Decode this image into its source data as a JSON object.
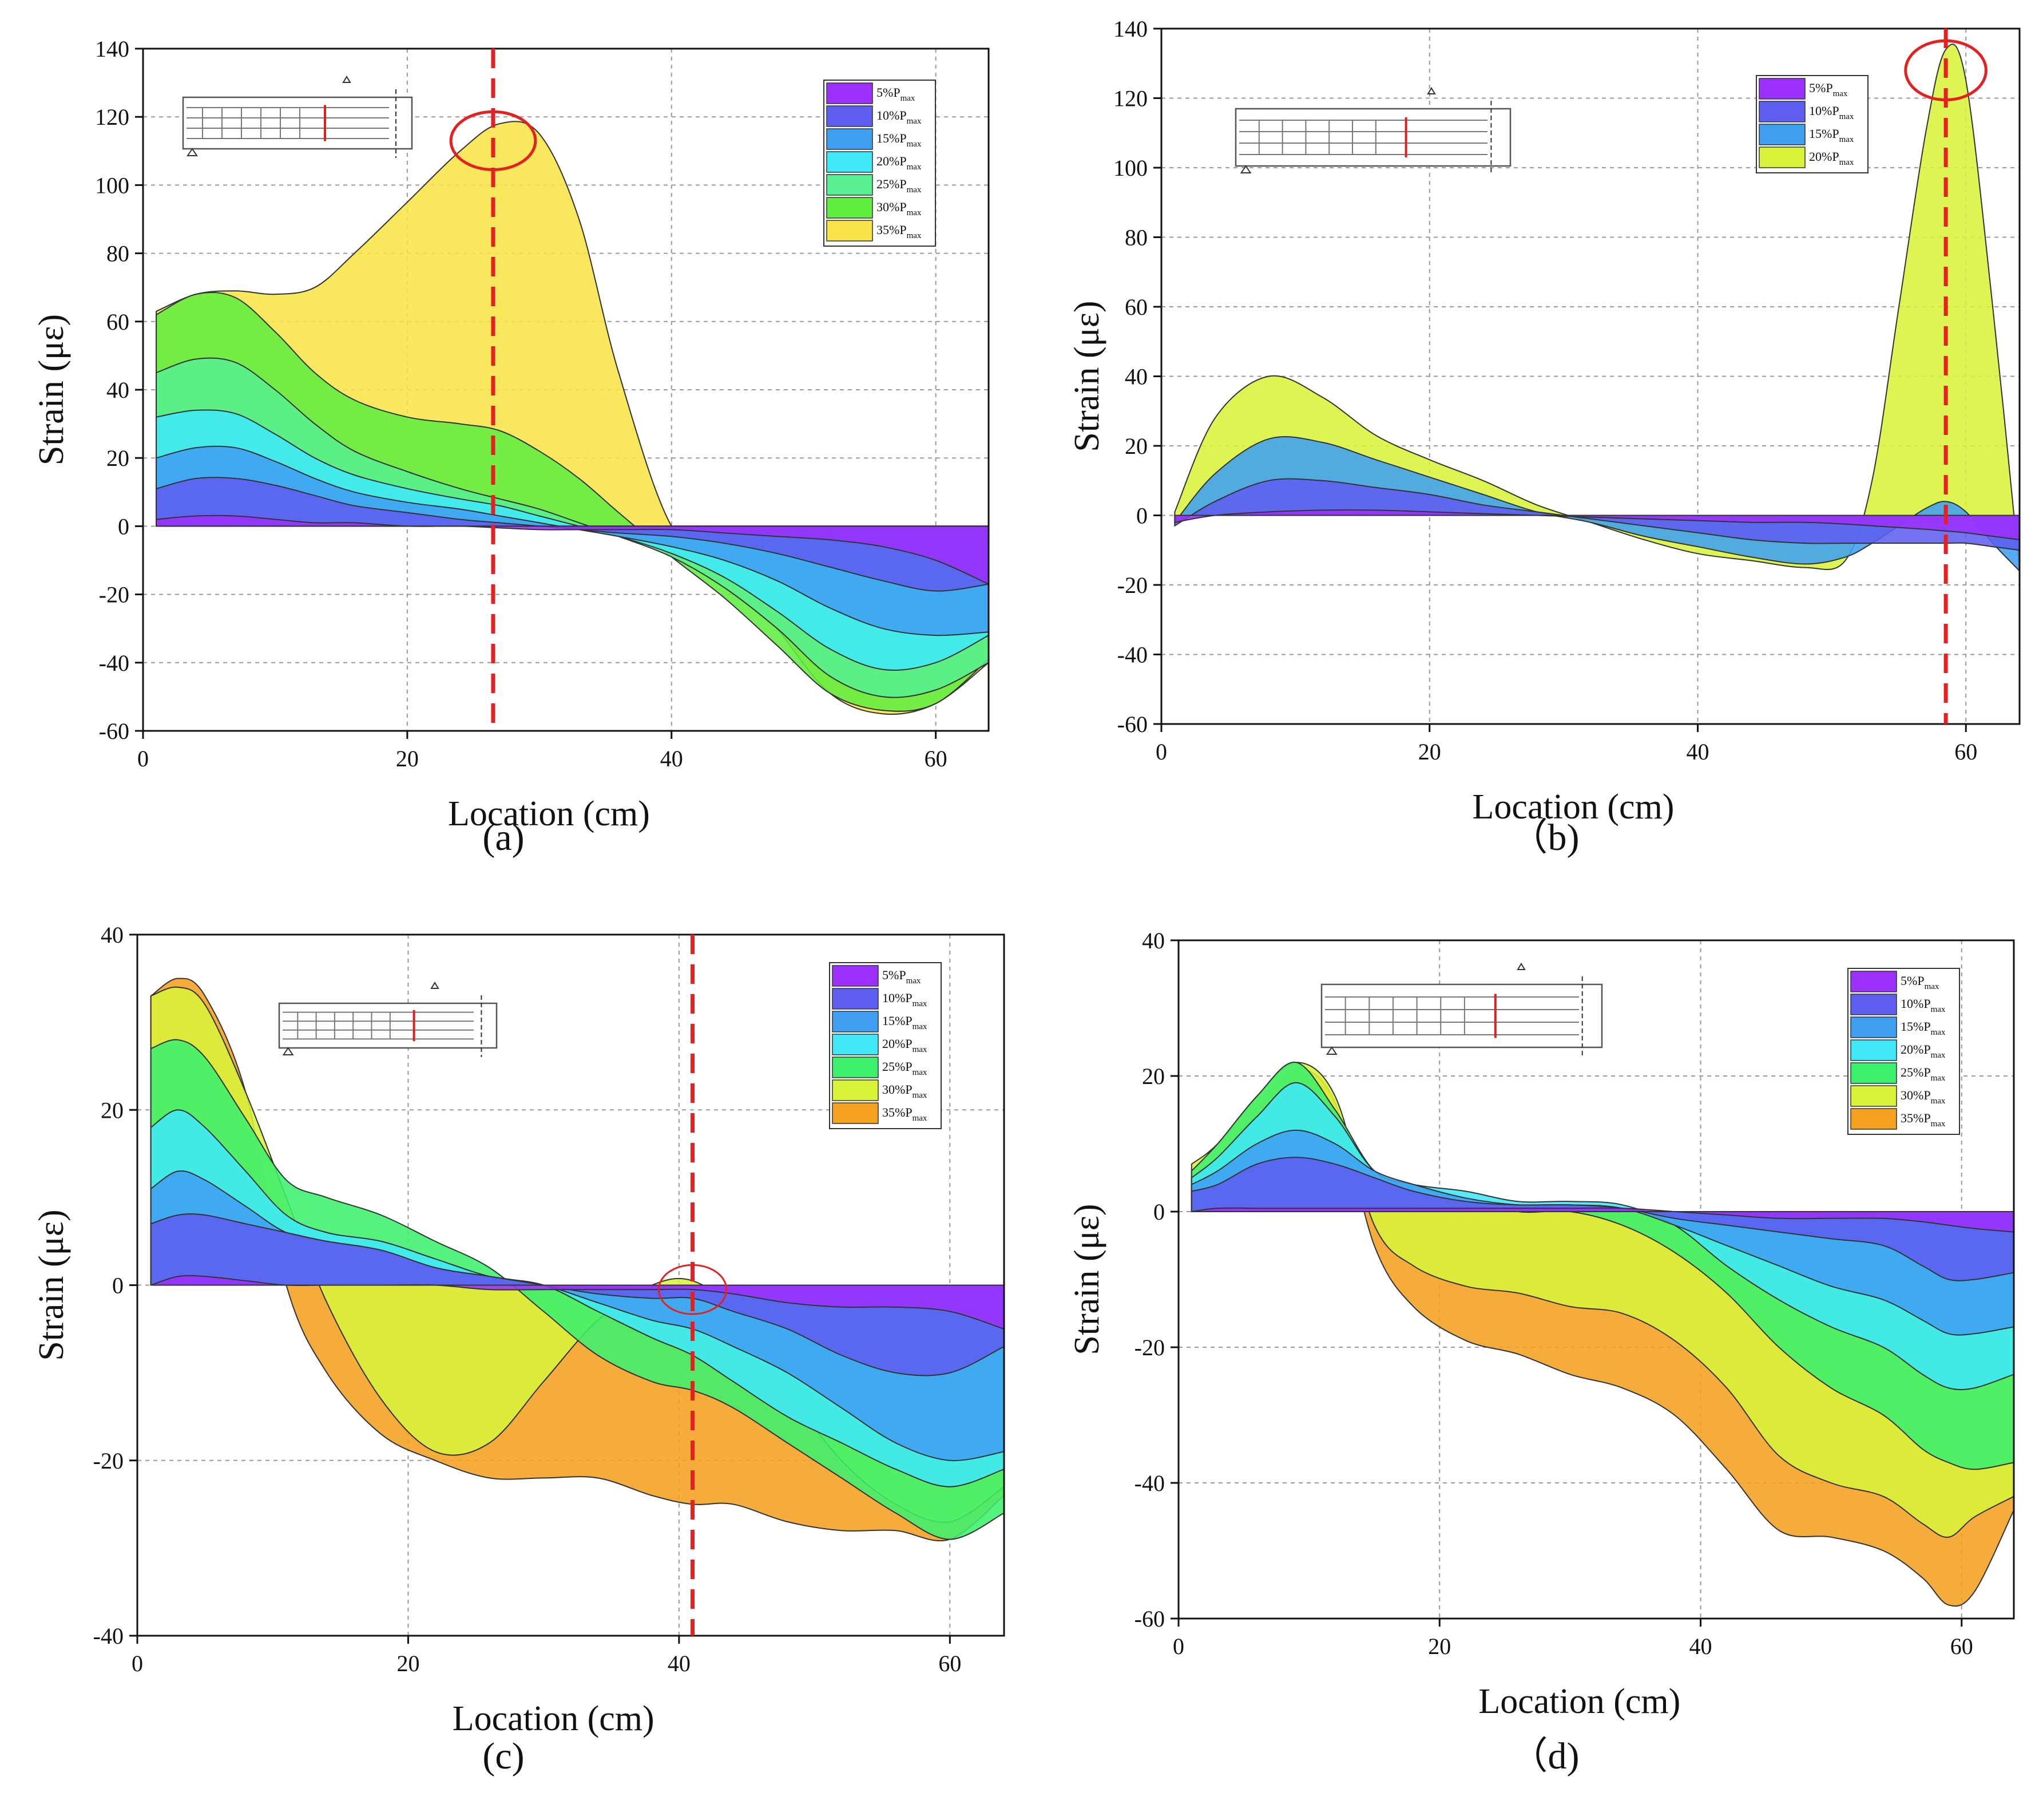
{
  "figure": {
    "captions": [
      "(a)",
      "（b)",
      "(c)",
      "（d)"
    ]
  },
  "colors": {
    "p5": "#9b30ff",
    "p10": "#5e5ef0",
    "p15": "#3fa0f2",
    "p20": "#40e8f8",
    "p25": "#3cf06c",
    "p30": "#d8f23a",
    "p35": "#f4a020",
    "p35_a": "#f8e448",
    "p25_a": "#58f090",
    "p30_a": "#60ee40",
    "guide": "#e62020"
  },
  "chart_data": [
    {
      "id": "a",
      "type": "area",
      "caption": "(a)",
      "xlabel": "Location (cm)",
      "ylabel": "Strain (με)",
      "xlim": [
        0,
        64
      ],
      "ylim": [
        -60,
        140
      ],
      "xticks": [
        0,
        20,
        40,
        60
      ],
      "yticks": [
        -60,
        -40,
        -20,
        0,
        20,
        40,
        60,
        80,
        100,
        120,
        140
      ],
      "x": [
        1,
        4,
        7,
        10,
        13,
        16,
        20,
        24,
        27,
        30,
        33,
        36,
        40,
        44,
        48,
        52,
        56,
        60,
        64
      ],
      "series": [
        {
          "name": "5%P",
          "sub": "max",
          "color_key": "p5",
          "values": [
            2,
            3,
            3,
            2,
            1,
            1,
            0,
            0,
            -0.5,
            -1,
            -1,
            -1,
            -1,
            -2,
            -3,
            -4,
            -6,
            -10,
            -17
          ]
        },
        {
          "name": "10%P",
          "sub": "max",
          "color_key": "p10",
          "values": [
            11,
            14,
            14,
            12,
            9,
            6,
            4,
            2,
            1,
            0,
            -1,
            -2,
            -3,
            -5,
            -8,
            -12,
            -16,
            -19,
            -17
          ]
        },
        {
          "name": "15%P",
          "sub": "max",
          "color_key": "p15",
          "values": [
            20,
            23,
            23,
            19,
            14,
            10,
            7,
            5,
            3,
            1,
            -1,
            -3,
            -6,
            -10,
            -16,
            -24,
            -30,
            -32,
            -31
          ]
        },
        {
          "name": "20%P",
          "sub": "max",
          "color_key": "p20",
          "values": [
            32,
            34,
            33,
            27,
            20,
            15,
            11,
            8,
            6,
            3,
            0,
            -3,
            -8,
            -15,
            -25,
            -36,
            -42,
            -40,
            -32
          ]
        },
        {
          "name": "25%P",
          "sub": "max",
          "color_key": "p25_a",
          "values": [
            45,
            49,
            48,
            40,
            30,
            22,
            16,
            11,
            8,
            5,
            1,
            -3,
            -9,
            -18,
            -30,
            -44,
            -50,
            -48,
            -40
          ]
        },
        {
          "name": "30%P",
          "sub": "max",
          "color_key": "p30_a",
          "values": [
            62,
            68,
            67,
            57,
            45,
            37,
            32,
            30,
            28,
            22,
            14,
            4,
            -9,
            -21,
            -35,
            -49,
            -54,
            -52,
            -39
          ]
        },
        {
          "name": "35%P",
          "sub": "max",
          "color_key": "p35_a",
          "values": [
            63,
            68,
            69,
            68,
            70,
            80,
            95,
            110,
            118,
            115,
            90,
            45,
            0,
            -10,
            -30,
            -49,
            -55,
            -52,
            -40
          ]
        }
      ],
      "guide_x": 26.5,
      "circle_x": 26.5,
      "circle_y": 113,
      "circle_rx": 3.2,
      "circle_ry": 8.5
    },
    {
      "id": "b",
      "type": "area",
      "caption": "（b)",
      "xlabel": "Location (cm)",
      "ylabel": "Strain (με)",
      "xlim": [
        0,
        64
      ],
      "ylim": [
        -60,
        140
      ],
      "xticks": [
        0,
        20,
        40,
        60
      ],
      "yticks": [
        -60,
        -40,
        -20,
        0,
        20,
        40,
        60,
        80,
        100,
        120,
        140
      ],
      "x": [
        1,
        4,
        8,
        12,
        16,
        20,
        24,
        28,
        32,
        36,
        40,
        44,
        48,
        51,
        53,
        55,
        57,
        58.5,
        60,
        62,
        64
      ],
      "series": [
        {
          "name": "5%P",
          "sub": "max",
          "color_key": "p5",
          "values": [
            -2,
            0,
            1,
            1.5,
            1.5,
            1,
            0.5,
            0,
            -0.5,
            -1,
            -1.5,
            -2,
            -2,
            -2.5,
            -3,
            -3.5,
            -4,
            -4.5,
            -5,
            -6,
            -7
          ]
        },
        {
          "name": "10%P",
          "sub": "max",
          "color_key": "p10",
          "values": [
            -3,
            4,
            10,
            10,
            8,
            6,
            3,
            1,
            -1,
            -3,
            -5,
            -7,
            -8,
            -8,
            -8,
            -8,
            -8,
            -8,
            -8,
            -9,
            -10
          ]
        },
        {
          "name": "15%P",
          "sub": "max",
          "color_key": "p15",
          "values": [
            -2,
            12,
            22,
            21,
            16,
            11,
            6,
            1,
            -2,
            -6,
            -9,
            -12,
            -14,
            -12,
            -8,
            -3,
            2,
            4,
            1,
            -8,
            -16
          ]
        },
        {
          "name": "20%P",
          "sub": "max",
          "color_key": "p30",
          "values": [
            1,
            28,
            40,
            34,
            23,
            16,
            10,
            3,
            -2,
            -7,
            -11,
            -13,
            -15,
            -13,
            10,
            60,
            110,
            134,
            125,
            60,
            -16
          ]
        }
      ],
      "guide_x": 58.5,
      "circle_x": 58.5,
      "circle_y": 128,
      "circle_rx": 3.0,
      "circle_ry": 8.5
    },
    {
      "id": "c",
      "type": "area",
      "caption": "(c)",
      "xlabel": "Location (cm)",
      "ylabel": "Strain (με)",
      "xlim": [
        0,
        64
      ],
      "ylim": [
        -40,
        40
      ],
      "xticks": [
        0,
        20,
        40,
        60
      ],
      "yticks": [
        -40,
        -20,
        0,
        20,
        40
      ],
      "x": [
        1,
        3,
        5,
        8,
        11,
        14,
        18,
        22,
        26,
        30,
        34,
        38,
        41,
        44,
        48,
        52,
        56,
        60,
        64
      ],
      "series": [
        {
          "name": "5%P",
          "sub": "max",
          "color_key": "p5",
          "values": [
            0,
            1,
            1,
            0.5,
            0,
            0,
            0,
            0,
            -0.5,
            -0.5,
            -0.5,
            -0.5,
            -0.5,
            -1,
            -2,
            -2.5,
            -2.5,
            -3,
            -5
          ]
        },
        {
          "name": "10%P",
          "sub": "max",
          "color_key": "p10",
          "values": [
            7,
            8,
            8,
            7,
            6,
            5,
            4,
            2,
            1,
            0,
            -1,
            -1.5,
            -1.5,
            -3,
            -5,
            -8,
            -10,
            -10,
            -7
          ]
        },
        {
          "name": "15%P",
          "sub": "max",
          "color_key": "p15",
          "values": [
            11,
            13,
            12,
            9,
            6,
            5,
            4,
            2,
            1,
            0,
            -2,
            -4,
            -5,
            -7,
            -10,
            -14,
            -18,
            -20,
            -19
          ]
        },
        {
          "name": "20%P",
          "sub": "max",
          "color_key": "p20",
          "values": [
            18,
            20,
            18,
            13,
            8,
            6,
            5,
            3,
            1,
            0,
            -3,
            -6,
            -8,
            -11,
            -15,
            -18,
            -21,
            -23,
            -21
          ]
        },
        {
          "name": "25%P",
          "sub": "max",
          "color_key": "p25",
          "values": [
            27,
            28,
            26,
            19,
            12,
            10,
            8,
            5,
            2,
            -3,
            -8,
            -11,
            -12,
            -14,
            -18,
            -22,
            -26,
            -29,
            -26
          ]
        },
        {
          "name": "30%P",
          "sub": "max",
          "color_key": "p30",
          "values": [
            33,
            34,
            32,
            22,
            10,
            -2,
            -13,
            -19,
            -18,
            -11,
            -4,
            0,
            0.5,
            -3,
            -12,
            -20,
            -25,
            -27,
            -23
          ]
        },
        {
          "name": "35%P",
          "sub": "max",
          "color_key": "p35",
          "values": [
            33,
            35,
            33,
            22,
            0,
            -10,
            -17,
            -20,
            -22,
            -22,
            -22,
            -24,
            -25,
            -25,
            -27,
            -28,
            -28,
            -29,
            -24
          ]
        }
      ],
      "guide_x": 41,
      "circle_x": 41,
      "circle_y": -0.5,
      "circle_rx": 2.5,
      "circle_ry": 2.8
    },
    {
      "id": "d",
      "type": "area",
      "caption": "（d)",
      "xlabel": "Location (cm)",
      "ylabel": "Strain (με)",
      "xlim": [
        0,
        64
      ],
      "ylim": [
        -60,
        40
      ],
      "xticks": [
        0,
        20,
        40,
        60
      ],
      "yticks": [
        -60,
        -40,
        -20,
        0,
        20,
        40
      ],
      "x": [
        1,
        3,
        6,
        9,
        12,
        15,
        18,
        22,
        26,
        30,
        34,
        38,
        42,
        46,
        50,
        54,
        57,
        59,
        61,
        64
      ],
      "series": [
        {
          "name": "5%P",
          "sub": "max",
          "color_key": "p5",
          "values": [
            0,
            0.5,
            0.5,
            0.5,
            0.5,
            0.5,
            0.5,
            0.5,
            0.5,
            0.5,
            0.5,
            0,
            -0.5,
            -1,
            -1,
            -1,
            -1.5,
            -2,
            -2.5,
            -3
          ]
        },
        {
          "name": "10%P",
          "sub": "max",
          "color_key": "p10",
          "values": [
            3,
            4,
            7,
            8,
            7,
            5,
            3,
            1.5,
            1,
            1,
            0.5,
            -1,
            -2,
            -3,
            -4,
            -5,
            -8,
            -10,
            -10,
            -9
          ]
        },
        {
          "name": "15%P",
          "sub": "max",
          "color_key": "p15",
          "values": [
            4,
            6,
            10,
            12,
            10,
            6,
            4,
            2,
            1,
            1,
            0.5,
            -2,
            -5,
            -8,
            -11,
            -13,
            -16,
            -18,
            -18,
            -17
          ]
        },
        {
          "name": "20%P",
          "sub": "max",
          "color_key": "p20",
          "values": [
            5,
            8,
            14,
            19,
            14,
            6,
            4,
            3,
            1.5,
            1.5,
            1,
            -2,
            -8,
            -13,
            -17,
            -20,
            -24,
            -26,
            -26,
            -24
          ]
        },
        {
          "name": "25%P",
          "sub": "max",
          "color_key": "p25",
          "values": [
            6,
            10,
            17,
            22,
            15,
            6,
            4,
            2,
            0,
            0,
            -2,
            -6,
            -12,
            -20,
            -26,
            -30,
            -35,
            -37,
            -38,
            -37
          ]
        },
        {
          "name": "30%P",
          "sub": "max",
          "color_key": "p30",
          "values": [
            7,
            10,
            17,
            22,
            17,
            -2,
            -8,
            -11,
            -12,
            -14,
            -15,
            -19,
            -26,
            -36,
            -40,
            -42,
            -46,
            -48,
            -45,
            -42
          ]
        },
        {
          "name": "35%P",
          "sub": "max",
          "color_key": "p35",
          "values": [
            5,
            8,
            15,
            21,
            16,
            -5,
            -14,
            -19,
            -21,
            -24,
            -26,
            -30,
            -38,
            -47,
            -48,
            -50,
            -54,
            -58,
            -56,
            -44
          ]
        }
      ]
    }
  ]
}
